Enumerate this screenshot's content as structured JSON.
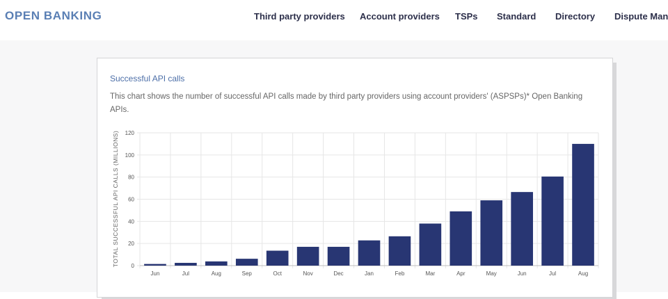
{
  "header": {
    "logo": "OPEN BANKING",
    "nav": [
      {
        "label": "Third party providers"
      },
      {
        "label": "Account providers"
      },
      {
        "label": "TSPs"
      },
      {
        "label": "Standard"
      },
      {
        "label": "Directory"
      },
      {
        "label": "Dispute Mana"
      }
    ]
  },
  "card": {
    "title": "Successful API calls",
    "description": "This chart shows the number of successful API calls made by third party providers using account providers' (ASPSPs)* Open Banking APIs."
  },
  "chart_data": {
    "type": "bar",
    "title": "",
    "xlabel": "",
    "ylabel": "TOTAL SUCCESSFUL API CALLS (MILLIONS)",
    "categories": [
      "Jun",
      "Jul",
      "Aug",
      "Sep",
      "Oct",
      "Nov",
      "Dec",
      "Jan",
      "Feb",
      "Mar",
      "Apr",
      "May",
      "Jun",
      "Jul",
      "Aug"
    ],
    "values": [
      1.5,
      2.5,
      3.8,
      6.2,
      13.5,
      17,
      17,
      22.8,
      26.5,
      38,
      49,
      59,
      66.5,
      80.5,
      110
    ],
    "ylim": [
      0,
      120
    ],
    "yticks": [
      0,
      20,
      40,
      60,
      80,
      100,
      120
    ],
    "bar_color": "#283673",
    "grid": true,
    "legend": "none"
  }
}
